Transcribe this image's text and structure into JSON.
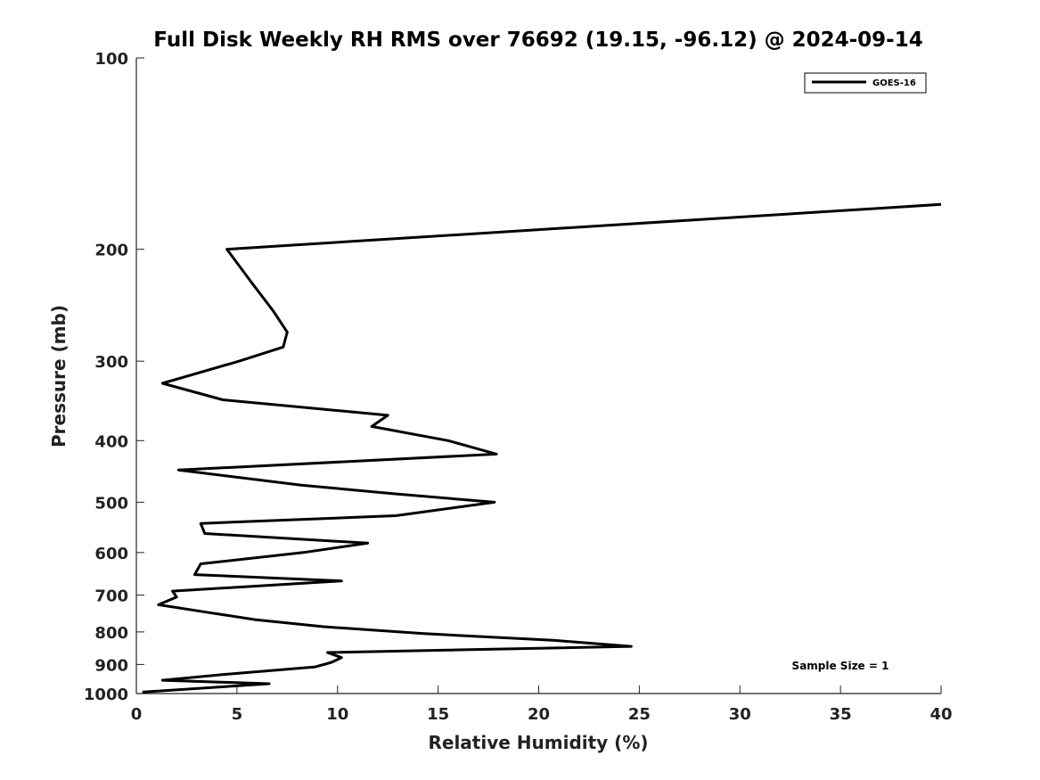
{
  "chart_data": {
    "type": "line",
    "title": "Full Disk Weekly RH RMS over 76692 (19.15, -96.12) @ 2024-09-14",
    "xlabel": "Relative Humidity (%)",
    "ylabel": "Pressure (mb)",
    "xlim": [
      0,
      40
    ],
    "ylim": [
      100,
      1000
    ],
    "y_scale": "log",
    "y_reversed": true,
    "grid": false,
    "legend_placement": "top-right",
    "x_ticks": [
      0,
      5,
      10,
      15,
      20,
      25,
      30,
      35,
      40
    ],
    "x_tick_labels": [
      "0",
      "5",
      "10",
      "15",
      "20",
      "25",
      "30",
      "35",
      "40"
    ],
    "y_ticks": [
      100,
      200,
      300,
      400,
      500,
      600,
      700,
      800,
      900,
      1000
    ],
    "y_tick_labels": [
      "100",
      "200",
      "300",
      "400",
      "500",
      "600",
      "700",
      "800",
      "900",
      "1000"
    ],
    "series": [
      {
        "name": "GOES-16",
        "color": "#000000",
        "points": [
          [
            40.0,
            170
          ],
          [
            4.5,
            200
          ],
          [
            5.7,
            225
          ],
          [
            6.8,
            250
          ],
          [
            7.5,
            270
          ],
          [
            7.3,
            285
          ],
          [
            5.1,
            300
          ],
          [
            1.3,
            325
          ],
          [
            4.3,
            345
          ],
          [
            12.5,
            365
          ],
          [
            11.7,
            380
          ],
          [
            15.5,
            400
          ],
          [
            17.9,
            420
          ],
          [
            2.1,
            445
          ],
          [
            8.2,
            470
          ],
          [
            12.8,
            485
          ],
          [
            17.8,
            500
          ],
          [
            12.9,
            525
          ],
          [
            3.2,
            540
          ],
          [
            3.4,
            560
          ],
          [
            11.5,
            580
          ],
          [
            8.3,
            600
          ],
          [
            3.2,
            625
          ],
          [
            2.9,
            650
          ],
          [
            10.2,
            665
          ],
          [
            1.8,
            690
          ],
          [
            2.0,
            705
          ],
          [
            1.1,
            725
          ],
          [
            3.5,
            745
          ],
          [
            5.9,
            765
          ],
          [
            9.3,
            785
          ],
          [
            14.3,
            805
          ],
          [
            20.8,
            825
          ],
          [
            24.6,
            843
          ],
          [
            9.5,
            862
          ],
          [
            10.2,
            878
          ],
          [
            9.7,
            893
          ],
          [
            8.9,
            908
          ],
          [
            4.4,
            933
          ],
          [
            1.3,
            953
          ],
          [
            6.6,
            965
          ],
          [
            0.3,
            995
          ]
        ]
      }
    ],
    "annotations": [
      "Sample Size = 1"
    ]
  }
}
